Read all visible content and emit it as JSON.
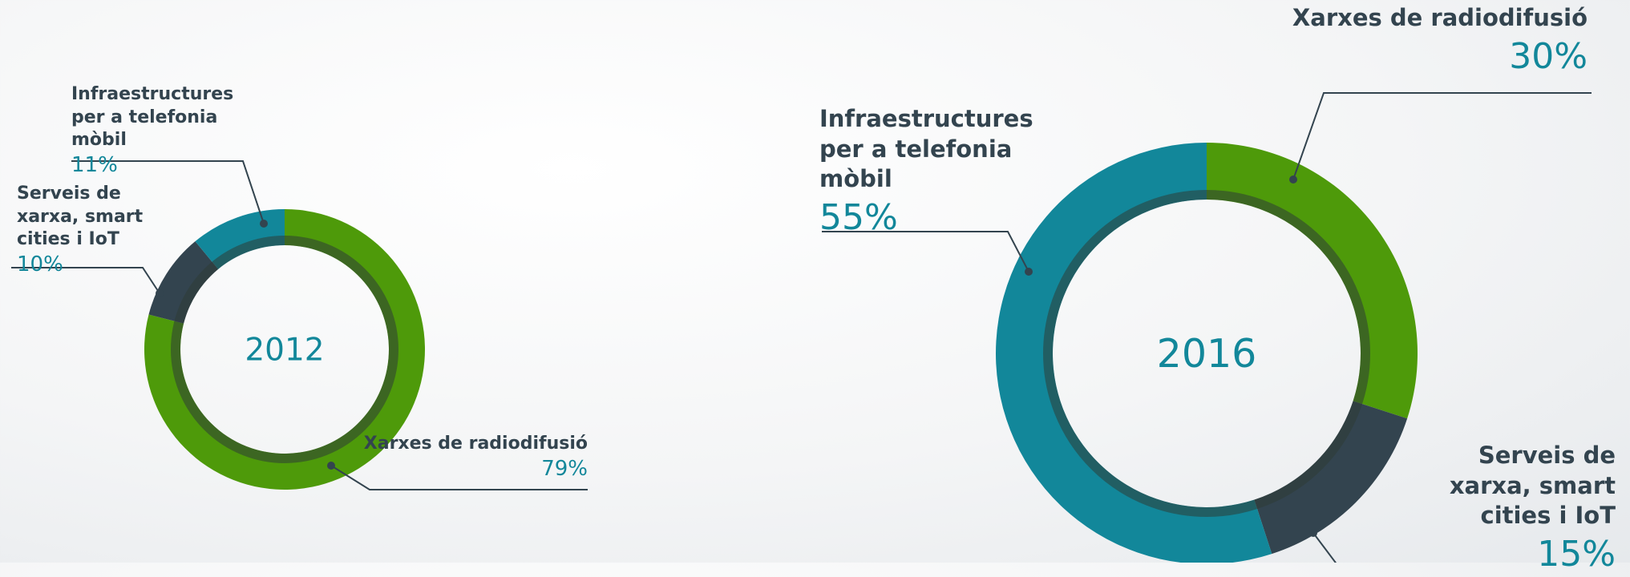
{
  "chart_data": [
    {
      "type": "pie",
      "title": "2012",
      "categories": [
        "Xarxes de radiodifusió",
        "Serveis de xarxa, smart cities i IoT",
        "Infraestructures per a telefonia mòbil"
      ],
      "values": [
        79,
        10,
        11
      ],
      "value_labels": [
        "79%",
        "10%",
        "11%"
      ],
      "colors": [
        "#4e9a0a",
        "#33444f",
        "#12879a"
      ]
    },
    {
      "type": "pie",
      "title": "2016",
      "categories": [
        "Xarxes de radiodifusió",
        "Serveis de xarxa, smart cities i IoT",
        "Infraestructures per a telefonia mòbil"
      ],
      "values": [
        30,
        15,
        55
      ],
      "value_labels": [
        "30%",
        "15%",
        "55%"
      ],
      "colors": [
        "#4e9a0a",
        "#33444f",
        "#12879a"
      ]
    }
  ]
}
